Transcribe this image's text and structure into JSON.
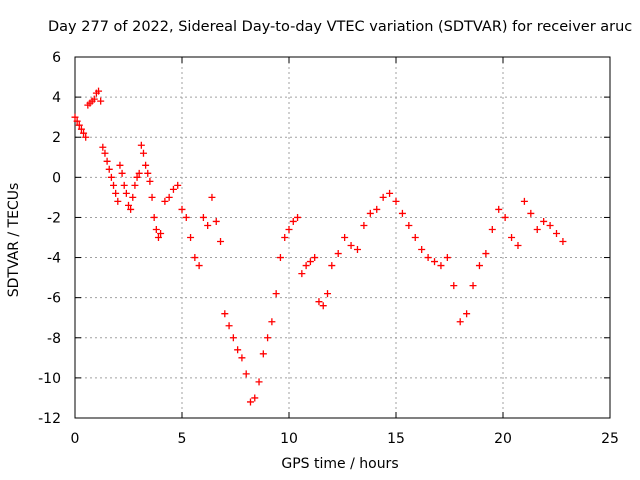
{
  "chart_data": {
    "type": "scatter",
    "title": "Day 277 of 2022, Sidereal Day-to-day VTEC variation (SDTVAR) for receiver aruc",
    "xlabel": "GPS time / hours",
    "ylabel": "SDTVAR / TECUs",
    "xlim": [
      0,
      25
    ],
    "ylim": [
      -12,
      6
    ],
    "xticks": [
      "0",
      "5",
      "10",
      "15",
      "20",
      "25"
    ],
    "yticks": [
      "-12",
      "-10",
      "-8",
      "-6",
      "-4",
      "-2",
      "0",
      "2",
      "4",
      "6"
    ],
    "grid": true,
    "marker": "+",
    "color": "#ff0000",
    "series": [
      {
        "name": "SDTVAR",
        "x": [
          0.0,
          0.1,
          0.2,
          0.3,
          0.4,
          0.5,
          0.6,
          0.7,
          0.8,
          0.9,
          1.0,
          1.1,
          1.2,
          1.3,
          1.4,
          1.5,
          1.6,
          1.7,
          1.8,
          1.9,
          2.0,
          2.1,
          2.2,
          2.3,
          2.4,
          2.5,
          2.6,
          2.7,
          2.8,
          2.9,
          3.0,
          3.1,
          3.2,
          3.3,
          3.4,
          3.5,
          3.6,
          3.7,
          3.8,
          3.9,
          4.0,
          4.2,
          4.4,
          4.6,
          4.8,
          5.0,
          5.2,
          5.4,
          5.6,
          5.8,
          6.0,
          6.2,
          6.4,
          6.6,
          6.8,
          7.0,
          7.2,
          7.4,
          7.6,
          7.8,
          8.0,
          8.2,
          8.4,
          8.6,
          8.8,
          9.0,
          9.2,
          9.4,
          9.6,
          9.8,
          10.0,
          10.2,
          10.4,
          10.6,
          10.8,
          11.0,
          11.2,
          11.4,
          11.6,
          11.8,
          12.0,
          12.3,
          12.6,
          12.9,
          13.2,
          13.5,
          13.8,
          14.1,
          14.4,
          14.7,
          15.0,
          15.3,
          15.6,
          15.9,
          16.2,
          16.5,
          16.8,
          17.1,
          17.4,
          17.7,
          18.0,
          18.3,
          18.6,
          18.9,
          19.2,
          19.5,
          19.8,
          20.1,
          20.4,
          20.7,
          21.0,
          21.3,
          21.6,
          21.9,
          22.2,
          22.5,
          22.8
        ],
        "y": [
          3.0,
          2.8,
          2.6,
          2.4,
          2.2,
          2.0,
          3.6,
          3.7,
          3.8,
          3.9,
          4.2,
          4.3,
          3.8,
          1.5,
          1.2,
          0.8,
          0.4,
          0.0,
          -0.4,
          -0.8,
          -1.2,
          0.6,
          0.2,
          -0.4,
          -0.8,
          -1.4,
          -1.6,
          -1.0,
          -0.4,
          0.0,
          0.2,
          1.6,
          1.2,
          0.6,
          0.2,
          -0.2,
          -1.0,
          -2.0,
          -2.6,
          -3.0,
          -2.8,
          -1.2,
          -1.0,
          -0.6,
          -0.4,
          -1.6,
          -2.0,
          -3.0,
          -4.0,
          -4.4,
          -2.0,
          -2.4,
          -1.0,
          -2.2,
          -3.2,
          -6.8,
          -7.4,
          -8.0,
          -8.6,
          -9.0,
          -9.8,
          -11.2,
          -11.0,
          -10.2,
          -8.8,
          -8.0,
          -7.2,
          -5.8,
          -4.0,
          -3.0,
          -2.6,
          -2.2,
          -2.0,
          -4.8,
          -4.4,
          -4.2,
          -4.0,
          -6.2,
          -6.4,
          -5.8,
          -4.4,
          -3.8,
          -3.0,
          -3.4,
          -3.6,
          -2.4,
          -1.8,
          -1.6,
          -1.0,
          -0.8,
          -1.2,
          -1.8,
          -2.4,
          -3.0,
          -3.6,
          -4.0,
          -4.2,
          -4.4,
          -4.0,
          -5.4,
          -7.2,
          -6.8,
          -5.4,
          -4.4,
          -3.8,
          -2.6,
          -1.6,
          -2.0,
          -3.0,
          -3.4,
          -1.2,
          -1.8,
          -2.6,
          -2.2,
          -2.4,
          -2.8,
          -3.2
        ]
      }
    ]
  }
}
